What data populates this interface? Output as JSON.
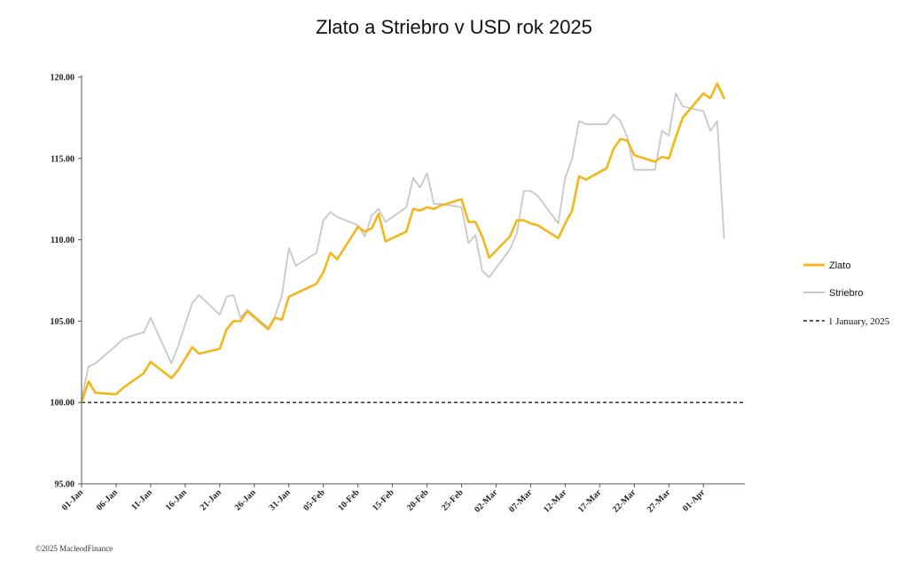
{
  "colors": {
    "gold": "#F2B71A",
    "silver": "#C8C8C8",
    "baseline": "#333333",
    "axis": "#555555"
  },
  "copyright": "©2025 MacleodFinance",
  "chart_data": {
    "type": "line",
    "title": "Zlato a Striebro v USD rok 2025",
    "xlabel": "",
    "ylabel": "",
    "ylim": [
      95,
      120
    ],
    "yticks": [
      "95.00",
      "100.00",
      "105.00",
      "110.00",
      "115.00",
      "120.00"
    ],
    "ytick_values": [
      95,
      100,
      105,
      110,
      115,
      120
    ],
    "day_range": [
      0,
      96
    ],
    "xtick_labels": [
      "01-Jan",
      "06-Jan",
      "11-Jan",
      "16-Jan",
      "21-Jan",
      "26-Jan",
      "31-Jan",
      "05-Feb",
      "10-Feb",
      "15-Feb",
      "20-Feb",
      "25-Feb",
      "02-Mar",
      "07-Mar",
      "12-Mar",
      "17-Mar",
      "22-Mar",
      "27-Mar",
      "01-Apr"
    ],
    "xtick_days": [
      0,
      5,
      10,
      15,
      20,
      25,
      30,
      35,
      40,
      45,
      50,
      55,
      60,
      65,
      70,
      75,
      80,
      85,
      90
    ],
    "legend_position": "right",
    "series": [
      {
        "name": "Zlato",
        "color": "#F2B71A",
        "x": [
          0,
          1,
          2,
          5,
          6,
          8,
          9,
          10,
          13,
          14,
          16,
          17,
          20,
          21,
          22,
          23,
          24,
          27,
          28,
          29,
          30,
          31,
          34,
          35,
          36,
          37,
          40,
          41,
          42,
          43,
          44,
          47,
          48,
          49,
          50,
          51,
          52,
          55,
          56,
          57,
          58,
          59,
          62,
          63,
          64,
          65,
          66,
          69,
          70,
          71,
          72,
          73,
          76,
          77,
          78,
          79,
          80,
          83,
          84,
          85,
          86,
          87,
          90,
          91,
          92,
          93
        ],
        "values": [
          100,
          101.3,
          100.6,
          100.5,
          100.9,
          101.5,
          101.8,
          102.5,
          101.5,
          102.0,
          103.4,
          103.0,
          103.3,
          104.5,
          105.0,
          105.0,
          105.6,
          104.5,
          105.2,
          105.1,
          106.5,
          106.7,
          107.3,
          108.0,
          109.2,
          108.8,
          110.8,
          110.5,
          110.7,
          111.6,
          109.9,
          110.5,
          111.9,
          111.8,
          112.0,
          111.9,
          112.1,
          112.5,
          111.1,
          111.1,
          110.2,
          108.9,
          110.2,
          111.2,
          111.2,
          111.0,
          110.9,
          110.1,
          111.0,
          111.8,
          113.9,
          113.7,
          114.4,
          115.6,
          116.2,
          116.1,
          115.2,
          114.8,
          115.1,
          115.0,
          116.3,
          117.5,
          119.0,
          118.7,
          119.6,
          118.7
        ]
      },
      {
        "name": "Striebro",
        "color": "#C8C8C8",
        "x": [
          0,
          1,
          2,
          5,
          6,
          8,
          9,
          10,
          13,
          14,
          16,
          17,
          20,
          21,
          22,
          23,
          24,
          27,
          28,
          29,
          30,
          31,
          34,
          35,
          36,
          37,
          40,
          41,
          42,
          43,
          44,
          47,
          48,
          49,
          50,
          51,
          52,
          55,
          56,
          57,
          58,
          59,
          62,
          63,
          64,
          65,
          66,
          69,
          70,
          71,
          72,
          73,
          76,
          77,
          78,
          79,
          80,
          83,
          84,
          85,
          86,
          87,
          90,
          91,
          92,
          93
        ],
        "values": [
          100.2,
          102.2,
          102.4,
          103.5,
          103.9,
          104.2,
          104.3,
          105.2,
          102.4,
          103.5,
          106.1,
          106.6,
          105.4,
          106.5,
          106.6,
          105.2,
          105.7,
          104.6,
          105.3,
          106.6,
          109.5,
          108.4,
          109.2,
          111.2,
          111.7,
          111.4,
          110.9,
          110.2,
          111.5,
          111.9,
          111.1,
          112.0,
          113.8,
          113.2,
          114.1,
          112.2,
          112.2,
          112.0,
          109.8,
          110.3,
          108.1,
          107.7,
          109.4,
          110.4,
          113.0,
          113.0,
          112.7,
          111.0,
          113.8,
          115.0,
          117.3,
          117.1,
          117.1,
          117.7,
          117.3,
          116.3,
          114.3,
          114.3,
          116.7,
          116.4,
          119.0,
          118.2,
          117.9,
          116.7,
          117.3,
          110.1
        ]
      }
    ],
    "reference_line": {
      "name": "1 January, 2025",
      "value": 100,
      "style": "dashed"
    }
  }
}
